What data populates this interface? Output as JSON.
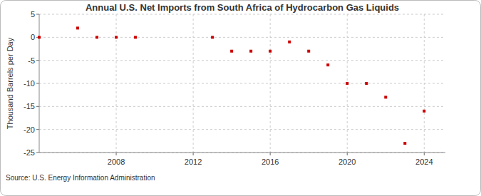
{
  "chart_data": {
    "type": "scatter",
    "title": "Annual U.S. Net Imports from South Africa of Hydrocarbon Gas Liquids",
    "y_label": "Thousand Barrels per Day",
    "source": "Source: U.S. Energy Information Administration",
    "x": [
      2004,
      2006,
      2007,
      2008,
      2009,
      2013,
      2014,
      2015,
      2016,
      2017,
      2018,
      2019,
      2020,
      2021,
      2022,
      2023,
      2024
    ],
    "values": [
      0,
      2,
      0,
      0,
      0,
      0,
      -3,
      -3,
      -3,
      -1,
      -3,
      -6,
      -10,
      -10,
      -13,
      -23,
      -16
    ],
    "color": "#cc0000",
    "marker": "square",
    "xlim": [
      2004,
      2025.1
    ],
    "xticks": [
      2008,
      2012,
      2016,
      2020,
      2024
    ],
    "ylim": [
      -25,
      5
    ],
    "yticks": [
      -25,
      -20,
      -15,
      -10,
      -5,
      0,
      5
    ],
    "grid": true
  }
}
